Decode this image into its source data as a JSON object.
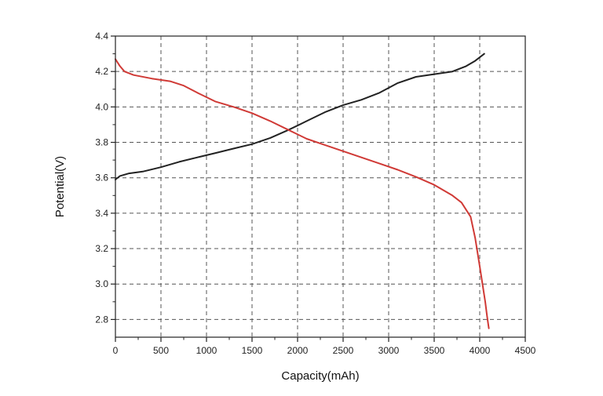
{
  "chart_data": {
    "type": "line",
    "title": "",
    "xlabel": "Capacity(mAh)",
    "ylabel": "Potential(V)",
    "xlim": [
      0,
      4500
    ],
    "ylim": [
      2.7,
      4.4
    ],
    "xticks": [
      0,
      500,
      1000,
      1500,
      2000,
      2500,
      3000,
      3500,
      4000,
      4500
    ],
    "yticks": [
      2.8,
      3.0,
      3.2,
      3.4,
      3.6,
      3.8,
      4.0,
      4.2,
      4.4
    ],
    "xtick_labels": [
      "0",
      "500",
      "1000",
      "1500",
      "2000",
      "2500",
      "3000",
      "3500",
      "4000",
      "4500"
    ],
    "ytick_labels": [
      "2.8",
      "3.0",
      "3.2",
      "3.4",
      "3.6",
      "3.8",
      "4.0",
      "4.2",
      "4.4"
    ],
    "grid": true,
    "grid_style": "dashed",
    "series": [
      {
        "color": "#222222",
        "x": [
          0,
          50,
          150,
          300,
          500,
          700,
          900,
          1100,
          1300,
          1500,
          1700,
          1900,
          2100,
          2300,
          2500,
          2700,
          2900,
          3100,
          3300,
          3500,
          3700,
          3850,
          3950,
          4050
        ],
        "y": [
          3.59,
          3.61,
          3.625,
          3.635,
          3.66,
          3.69,
          3.715,
          3.74,
          3.765,
          3.79,
          3.825,
          3.87,
          3.92,
          3.97,
          4.01,
          4.04,
          4.08,
          4.135,
          4.17,
          4.185,
          4.2,
          4.23,
          4.26,
          4.3
        ]
      },
      {
        "color": "#d03a36",
        "x": [
          0,
          50,
          100,
          200,
          400,
          600,
          750,
          900,
          1100,
          1300,
          1500,
          1700,
          1900,
          2100,
          2300,
          2500,
          2700,
          2900,
          3100,
          3300,
          3500,
          3700,
          3800,
          3900,
          3950,
          4000,
          4030,
          4060,
          4080,
          4100
        ],
        "y": [
          4.27,
          4.23,
          4.2,
          4.18,
          4.16,
          4.145,
          4.12,
          4.08,
          4.03,
          4.0,
          3.965,
          3.92,
          3.87,
          3.82,
          3.785,
          3.75,
          3.715,
          3.68,
          3.645,
          3.605,
          3.56,
          3.5,
          3.46,
          3.38,
          3.26,
          3.1,
          3.0,
          2.9,
          2.82,
          2.75
        ]
      }
    ]
  }
}
